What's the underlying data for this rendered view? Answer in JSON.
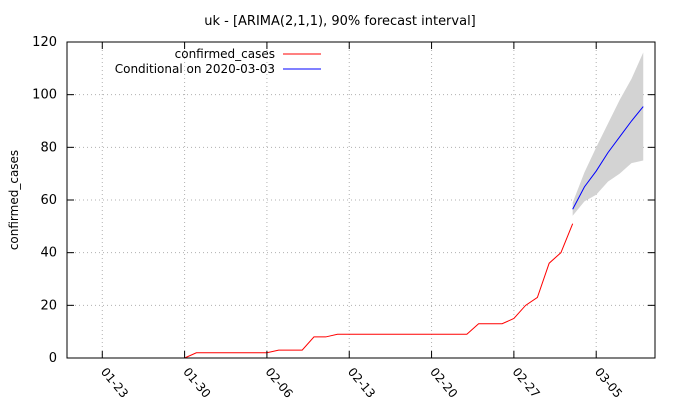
{
  "chart_data": {
    "type": "line",
    "title": "uk -  [ARIMA(2,1,1), 90% forecast interval]",
    "xlabel": "",
    "ylabel": "confirmed_cases",
    "ylim": [
      0,
      120
    ],
    "yticks": [
      0,
      20,
      40,
      60,
      80,
      100,
      120
    ],
    "x_axis_type": "date",
    "xlim": [
      "2020-01-20",
      "2020-03-10"
    ],
    "xticks": [
      {
        "date": "2020-01-23",
        "label": "01-23"
      },
      {
        "date": "2020-01-30",
        "label": "01-30"
      },
      {
        "date": "2020-02-06",
        "label": "02-06"
      },
      {
        "date": "2020-02-13",
        "label": "02-13"
      },
      {
        "date": "2020-02-20",
        "label": "02-20"
      },
      {
        "date": "2020-02-27",
        "label": "02-27"
      },
      {
        "date": "2020-03-05",
        "label": "03-05"
      }
    ],
    "grid": true,
    "legend_position": "top-left",
    "series": [
      {
        "name": "confirmed_cases",
        "color": "#ff0000",
        "x": [
          "2020-01-30",
          "2020-01-31",
          "2020-02-01",
          "2020-02-02",
          "2020-02-03",
          "2020-02-04",
          "2020-02-05",
          "2020-02-06",
          "2020-02-07",
          "2020-02-08",
          "2020-02-09",
          "2020-02-10",
          "2020-02-11",
          "2020-02-12",
          "2020-02-13",
          "2020-02-14",
          "2020-02-15",
          "2020-02-16",
          "2020-02-17",
          "2020-02-18",
          "2020-02-19",
          "2020-02-20",
          "2020-02-21",
          "2020-02-22",
          "2020-02-23",
          "2020-02-24",
          "2020-02-25",
          "2020-02-26",
          "2020-02-27",
          "2020-02-28",
          "2020-02-29",
          "2020-03-01",
          "2020-03-02"
        ],
        "values": [
          0,
          2,
          2,
          2,
          2,
          2,
          2,
          2,
          3,
          3,
          3,
          8,
          8,
          9,
          9,
          9,
          9,
          9,
          9,
          9,
          9,
          9,
          9,
          9,
          9,
          13,
          13,
          13,
          15,
          20,
          23,
          36,
          40
        ],
        "extra_last": {
          "date": "2020-03-03",
          "value": 51
        }
      },
      {
        "name": "Conditional on 2020-03-03",
        "color": "#0000ff",
        "x": [
          "2020-03-03",
          "2020-03-04",
          "2020-03-05",
          "2020-03-06",
          "2020-03-07",
          "2020-03-08",
          "2020-03-09"
        ],
        "values": [
          56.5,
          65,
          71,
          78,
          84,
          90,
          95.5
        ],
        "lower": [
          54,
          59.5,
          62,
          67,
          70,
          74,
          75
        ],
        "upper": [
          59,
          70.5,
          80,
          89,
          98,
          106,
          116
        ]
      }
    ],
    "band_color": "#d3d3d3"
  }
}
